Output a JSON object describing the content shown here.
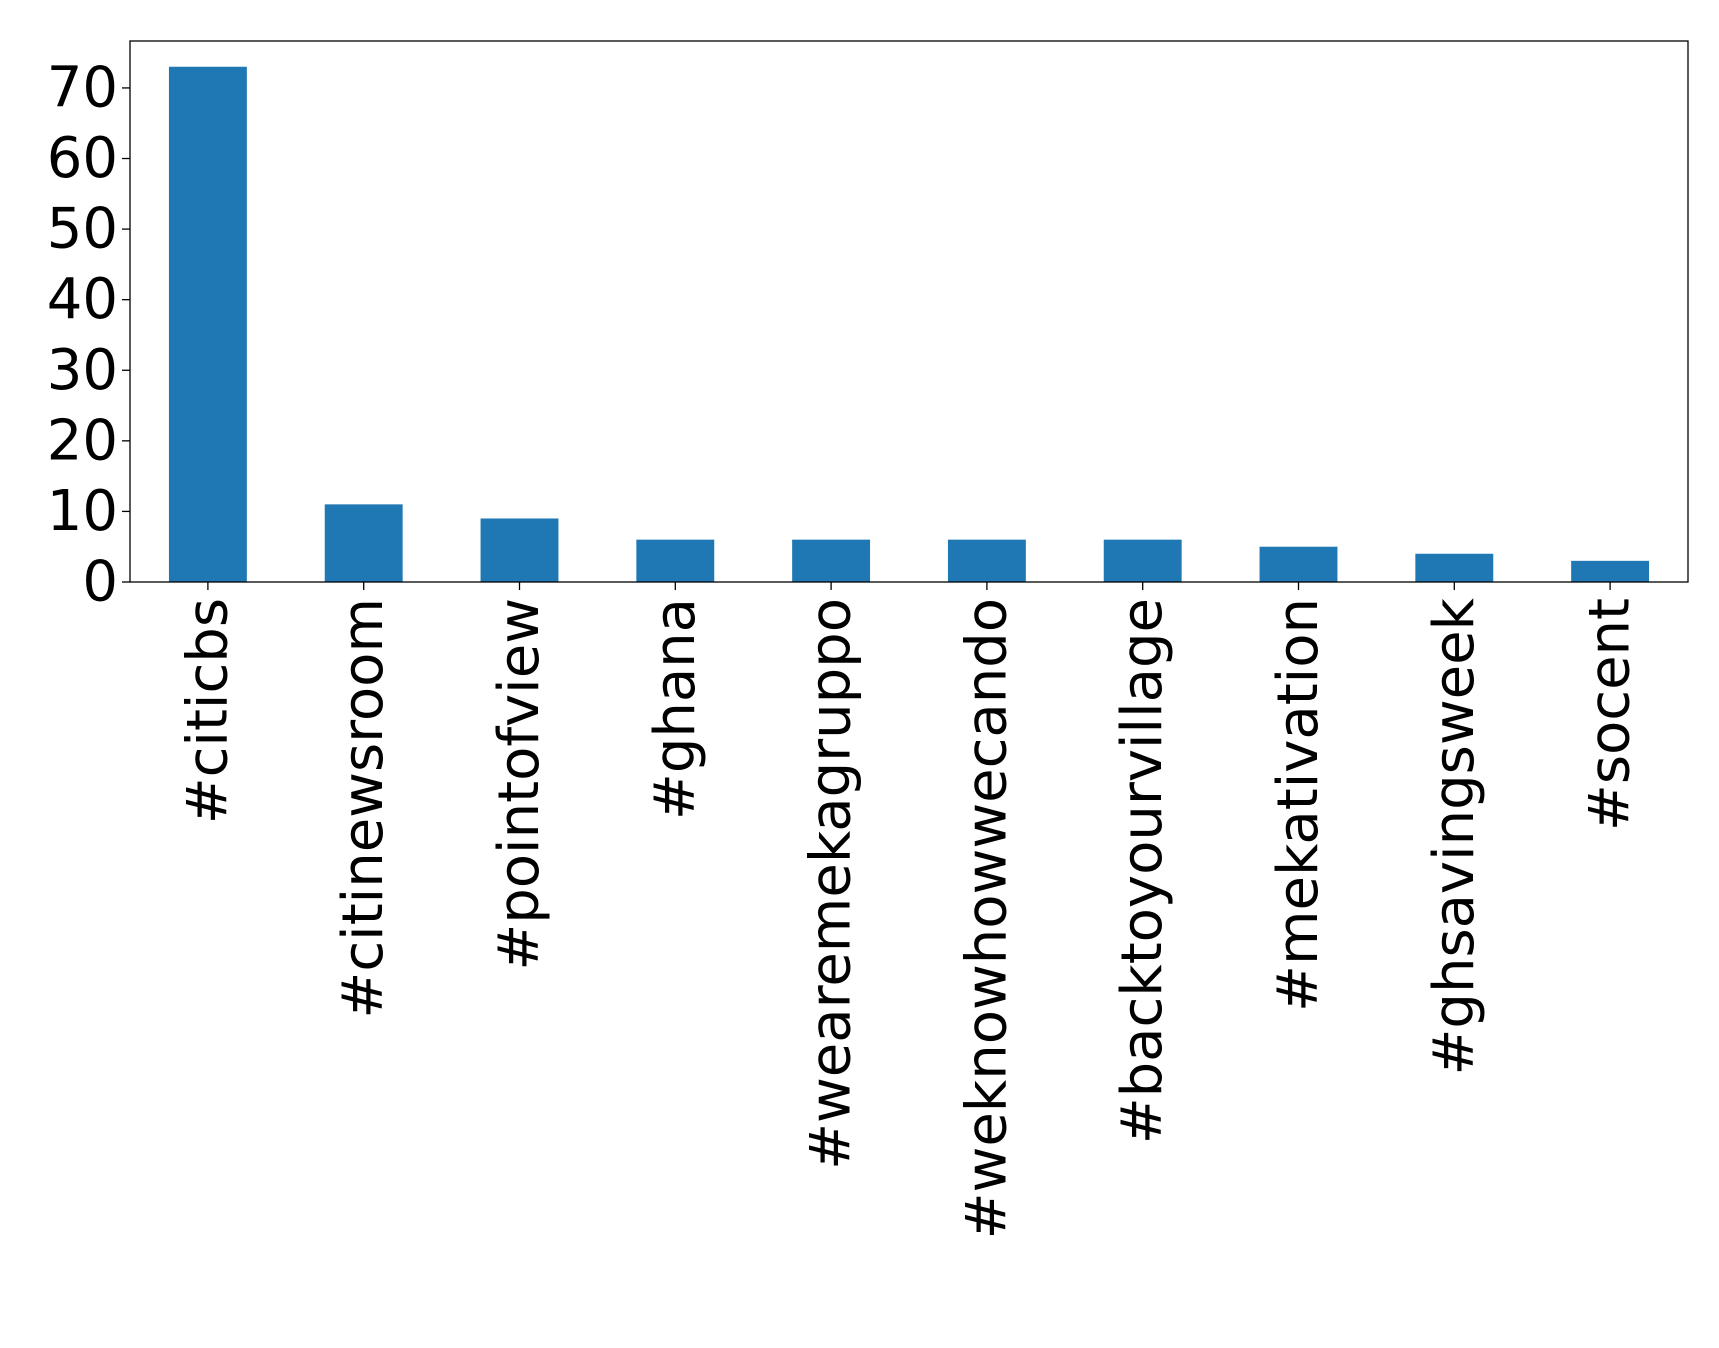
{
  "chart_data": {
    "type": "bar",
    "title": "",
    "xlabel": "",
    "ylabel": "",
    "categories": [
      "#citicbs",
      "#citinewsroom",
      "#pointofview",
      "#ghana",
      "#wearemekagruppo",
      "#weknowhowwecando",
      "#backtoyourvillage",
      "#mekativation",
      "#ghsavingsweek",
      "#socent"
    ],
    "values": [
      73,
      11,
      9,
      6,
      6,
      6,
      6,
      5,
      4,
      3
    ],
    "ylim": [
      0,
      76.65
    ],
    "yticks": [
      "0",
      "10",
      "20",
      "30",
      "40",
      "50",
      "60",
      "70"
    ],
    "bar_color": "#1f77b4",
    "grid": false,
    "legend": "none"
  }
}
